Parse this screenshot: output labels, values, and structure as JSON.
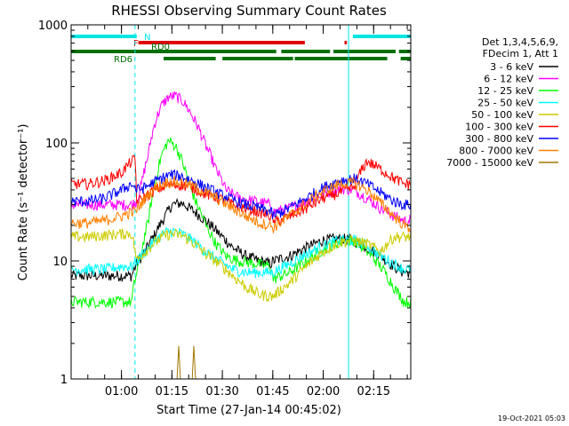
{
  "chart_data": {
    "type": "line",
    "title": "RHESSI Observing Summary Count Rates",
    "xlabel": "Start Time (27-Jan-14 00:45:02)",
    "ylabel": "Count Rate (s⁻¹ detector⁻¹)",
    "ylog": true,
    "ylim": [
      1,
      1000
    ],
    "xlim_minutes_from_start": [
      0,
      101
    ],
    "x_ticks": [
      {
        "label": "01:00",
        "minutes": 14.97
      },
      {
        "label": "01:15",
        "minutes": 29.97
      },
      {
        "label": "01:30",
        "minutes": 44.97
      },
      {
        "label": "01:45",
        "minutes": 59.97
      },
      {
        "label": "02:00",
        "minutes": 74.97
      },
      {
        "label": "02:15",
        "minutes": 89.97
      }
    ],
    "y_ticks": [
      {
        "label": "1",
        "value": 1
      },
      {
        "label": "10",
        "value": 10
      },
      {
        "label": "100",
        "value": 100
      },
      {
        "label": "1000",
        "value": 1000
      }
    ],
    "legend_placement": "right",
    "legend_header": [
      "Det 1,3,4,5,6,9,",
      "FDecim 1, Att 1"
    ],
    "timestamp": "19-Oct-2021 05:03",
    "status_bars": [
      {
        "label": "N",
        "color": "#00e5e5",
        "segments": [
          [
            0,
            19.5
          ],
          [
            83.8,
            101
          ]
        ]
      },
      {
        "label": "F",
        "color": "#e00000",
        "segments": [
          [
            20.0,
            69.5
          ],
          [
            81.3,
            82.0
          ]
        ]
      },
      {
        "label": "RD0",
        "color": "#007000",
        "segments": [
          [
            0,
            61
          ],
          [
            62.5,
            77
          ],
          [
            78,
            96.5
          ],
          [
            97.5,
            101
          ]
        ]
      },
      {
        "label": "RD6",
        "color": "#007000",
        "segments": [
          [
            27.5,
            43
          ],
          [
            45,
            66
          ],
          [
            66.5,
            94
          ],
          [
            98,
            101
          ]
        ]
      }
    ],
    "vlines": [
      {
        "minutes": 19.0,
        "style": "dashed",
        "color": "#00e5e5"
      },
      {
        "minutes": 82.5,
        "style": "solid",
        "color": "#00e5e5"
      },
      {
        "minutes": 101.0,
        "style": "dashed",
        "color": "#00e5e5"
      }
    ],
    "series": [
      {
        "name": "3 - 6 keV",
        "color": "#000000",
        "x": [
          0,
          5,
          10,
          15,
          18,
          19.5,
          22,
          25,
          28,
          30,
          33,
          36,
          40,
          44,
          48,
          52,
          56,
          59.5,
          60,
          65,
          70,
          75,
          80,
          84,
          88,
          92,
          96,
          99,
          101
        ],
        "y": [
          7.5,
          7.5,
          7.5,
          7.5,
          7.5,
          9.5,
          12,
          17,
          24,
          30,
          31,
          27,
          22,
          17,
          13,
          11,
          10,
          9.5,
          10,
          11,
          13,
          15,
          15.5,
          15,
          13,
          11,
          9,
          8,
          8
        ]
      },
      {
        "name": "6 - 12 keV",
        "color": "#ff00ff",
        "x": [
          0,
          5,
          10,
          15,
          18,
          19.5,
          21,
          23,
          25,
          27,
          29,
          31,
          33,
          35,
          37,
          40,
          43,
          46,
          50,
          55,
          59.5,
          60,
          65,
          70,
          75,
          80,
          84,
          88,
          92,
          96,
          99,
          101
        ],
        "y": [
          30,
          30,
          30,
          30,
          30,
          32,
          45,
          80,
          150,
          210,
          245,
          250,
          230,
          190,
          150,
          95,
          60,
          40,
          34,
          32,
          30,
          26,
          28,
          32,
          37,
          41,
          40,
          34,
          28,
          24,
          22,
          22
        ]
      },
      {
        "name": "12 - 25 keV",
        "color": "#00ff00",
        "x": [
          0,
          5,
          10,
          15,
          18,
          19.5,
          21,
          23,
          25,
          27,
          29,
          31,
          33,
          35,
          37,
          40,
          43,
          46,
          50,
          55,
          59.5,
          60,
          65,
          70,
          75,
          80,
          84,
          88,
          92,
          96,
          99,
          101
        ],
        "y": [
          4.5,
          4.5,
          4.5,
          4.5,
          4.5,
          8,
          12,
          22,
          45,
          80,
          105,
          95,
          70,
          45,
          32,
          20,
          14,
          11,
          10,
          9.5,
          9,
          7,
          8,
          10,
          12.5,
          14.5,
          15,
          12,
          9,
          6,
          4.5,
          4.5
        ]
      },
      {
        "name": "25 - 50 keV",
        "color": "#00ffff",
        "x": [
          0,
          5,
          10,
          15,
          18,
          19.5,
          22,
          25,
          28,
          30,
          33,
          36,
          40,
          44,
          48,
          52,
          56,
          59.5,
          60,
          65,
          70,
          75,
          80,
          84,
          88,
          92,
          96,
          99,
          101
        ],
        "y": [
          8.5,
          8.5,
          8.5,
          9,
          9,
          10,
          12,
          15,
          17.5,
          18,
          17,
          15,
          12,
          10,
          8.5,
          8,
          8,
          8,
          8,
          9.5,
          11.5,
          13.5,
          15,
          15,
          13.5,
          11,
          9.5,
          8.5,
          8.5
        ]
      },
      {
        "name": "50 - 100 keV",
        "color": "#cccc00",
        "x": [
          0,
          5,
          10,
          15,
          18,
          19.5,
          22,
          25,
          28,
          30,
          33,
          36,
          40,
          44,
          48,
          52,
          56,
          60,
          65,
          70,
          75,
          80,
          84,
          88,
          92,
          96,
          99,
          101
        ],
        "y": [
          16,
          16,
          16.5,
          17,
          17,
          10,
          12,
          14.5,
          16.5,
          17,
          16.5,
          14.5,
          11.5,
          9.5,
          7.5,
          6,
          5.2,
          5,
          6.5,
          9,
          12,
          14.5,
          15,
          14,
          12,
          16,
          16,
          16
        ]
      },
      {
        "name": "100 - 300 keV",
        "color": "#ff0000",
        "x": [
          0,
          5,
          10,
          15,
          18,
          19,
          19.5,
          22,
          25,
          28,
          30,
          33,
          36,
          40,
          44,
          48,
          52,
          56,
          59.5,
          60,
          65,
          70,
          75,
          80,
          84,
          88,
          92,
          96,
          99,
          101
        ],
        "y": [
          45,
          45,
          48,
          56,
          70,
          72,
          31,
          35,
          40,
          43,
          44,
          44,
          42,
          37,
          34,
          30,
          28,
          26,
          24,
          21,
          24,
          28,
          34,
          38,
          42,
          70,
          60,
          50,
          45,
          45
        ]
      },
      {
        "name": "300 - 800 keV",
        "color": "#0000ff",
        "x": [
          0,
          5,
          10,
          15,
          18,
          19.5,
          22,
          25,
          28,
          30,
          33,
          36,
          40,
          44,
          48,
          52,
          56,
          59.5,
          60,
          65,
          70,
          75,
          80,
          84,
          88,
          92,
          96,
          99,
          101
        ],
        "y": [
          32,
          32,
          34,
          40,
          45,
          40,
          42,
          47,
          52,
          54,
          52,
          48,
          42,
          37,
          33,
          30,
          28,
          26,
          24,
          28,
          34,
          42,
          48,
          50,
          45,
          38,
          32,
          30,
          30
        ]
      },
      {
        "name": "800 - 7000 keV",
        "color": "#ff8000",
        "x": [
          0,
          5,
          10,
          15,
          18,
          19.5,
          22,
          25,
          28,
          30,
          33,
          36,
          40,
          44,
          48,
          52,
          56,
          59.5,
          60,
          65,
          70,
          75,
          80,
          84,
          88,
          92,
          96,
          99,
          101
        ],
        "y": [
          21,
          21,
          22,
          24,
          26,
          27,
          34,
          42,
          46,
          47,
          46,
          43,
          38,
          33,
          28,
          24,
          21,
          20,
          19,
          24,
          31,
          39,
          45,
          46,
          40,
          31,
          24,
          20,
          19
        ]
      },
      {
        "name": "7000 - 15000 keV",
        "color": "#a07800",
        "x": [
          0,
          31.5,
          32,
          32.5,
          36,
          36.5,
          37,
          101
        ],
        "y": [
          1,
          1,
          1.9,
          1,
          1,
          1.9,
          1,
          1
        ]
      }
    ]
  }
}
